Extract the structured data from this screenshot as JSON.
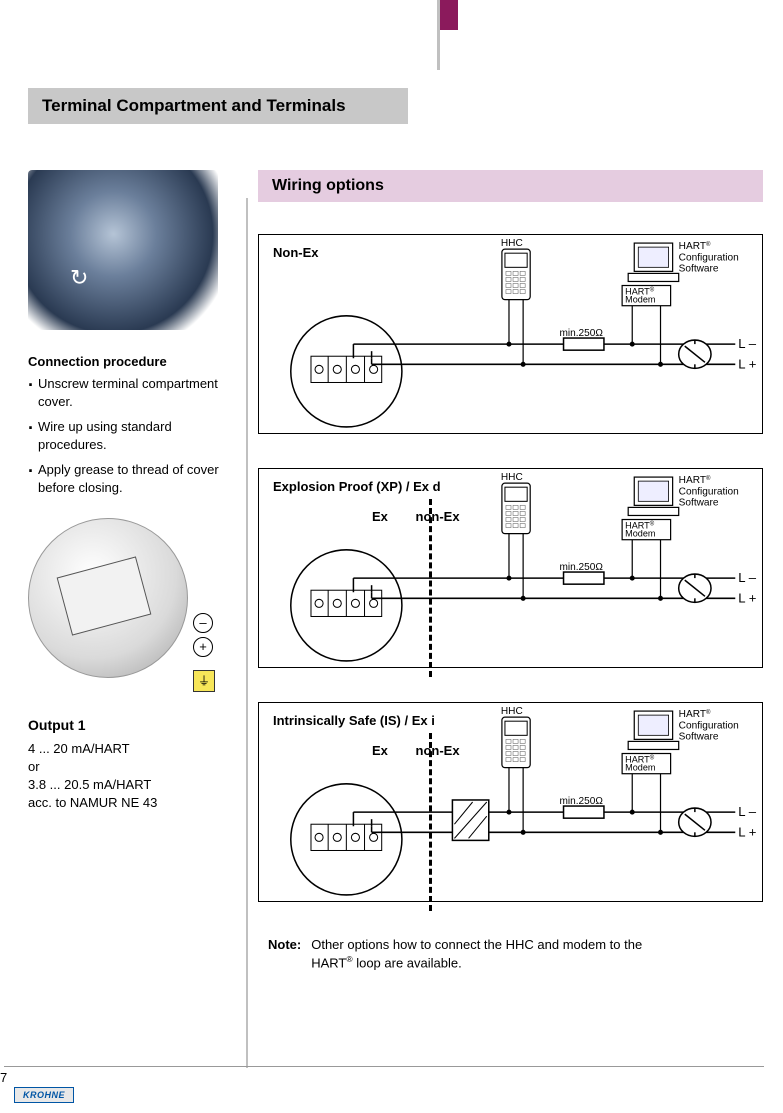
{
  "page": {
    "number": "7",
    "brand": "KROHNE",
    "accent_color": "#8b1a5c",
    "wiring_bg": "#e5cce0",
    "heading_bg": "#c8c8c8"
  },
  "heading": "Terminal Compartment and Terminals",
  "left": {
    "connection_title": "Connection procedure",
    "steps": [
      "Unscrew terminal compartment cover.",
      "Wire up using standard procedures.",
      "Apply grease to thread of cover before closing."
    ],
    "plus": "+",
    "minus": "–",
    "ground": "⏚",
    "output": {
      "title": "Output 1",
      "line1": "4 ... 20 mA/HART",
      "line2": "or",
      "line3": "3.8 ... 20.5 mA/HART",
      "line4": "acc. to NAMUR NE 43"
    }
  },
  "right": {
    "heading": "Wiring options",
    "hhc": "HHC",
    "hart_sw_l1": "HART",
    "hart_sw_l2": "Configuration",
    "hart_sw_l3": "Software",
    "hart_modem_l1": "HART",
    "hart_modem_l2": "Modem",
    "min250": "min.250Ω",
    "L_minus": "L –",
    "L_plus": "L +",
    "ex": "Ex",
    "nonex": "non-Ex",
    "cards": [
      {
        "title": "Non-Ex",
        "show_divider": false,
        "barrier": false
      },
      {
        "title": "Explosion Proof (XP) / Ex d",
        "show_divider": true,
        "barrier": false
      },
      {
        "title": "Intrinsically Safe (IS) / Ex i",
        "show_divider": true,
        "barrier": true
      }
    ],
    "note_label": "Note:",
    "note_text_l1": "Other options how to connect the HHC and modem to the",
    "note_text_l2": "HART",
    "note_text_l3": " loop are available."
  }
}
